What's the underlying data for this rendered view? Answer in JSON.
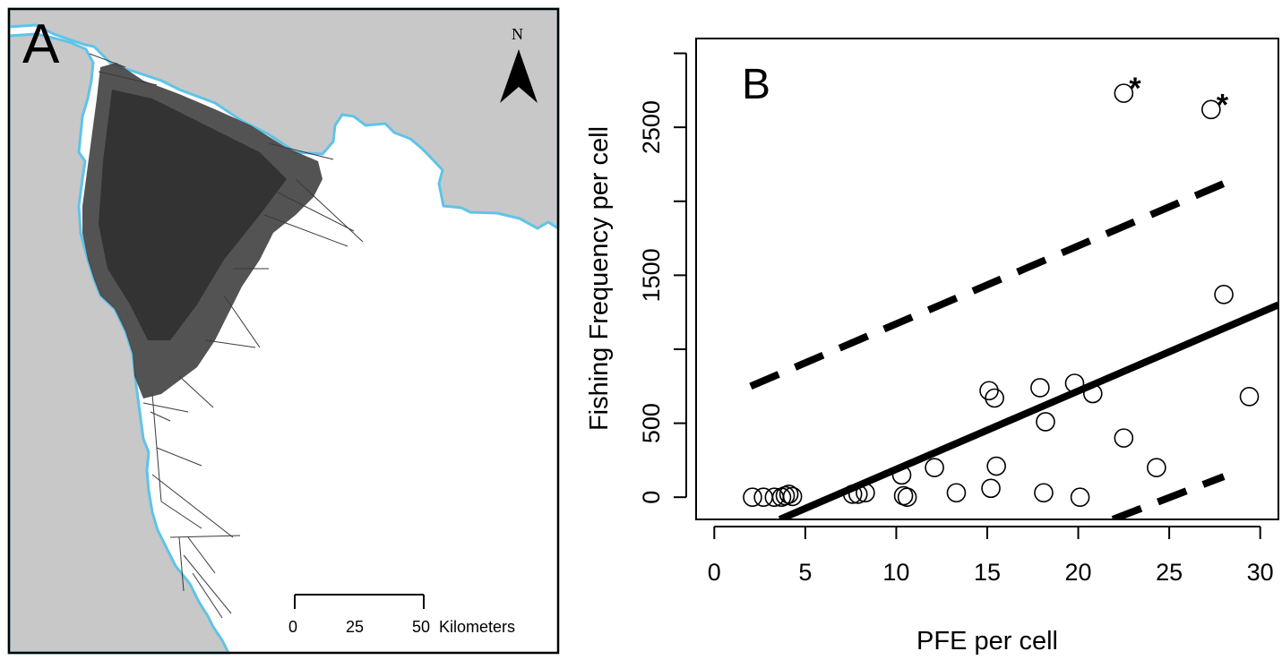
{
  "panel_a": {
    "label": "A",
    "north_label": "N",
    "scale_ticks": [
      "0",
      "25",
      "50"
    ],
    "scale_unit": "Kilometers",
    "colors": {
      "land": "#c8c8c8",
      "sea": "#ffffff",
      "coastline": "#5fc3e8",
      "tracks": "#3a3a3a"
    }
  },
  "chart_data": {
    "type": "scatter",
    "panel_label": "B",
    "title": "",
    "xlabel": "PFE per cell",
    "ylabel": "Fishing Frequency per cell",
    "xlim": [
      -1,
      31
    ],
    "ylim": [
      -150,
      3100
    ],
    "x_ticks": [
      0,
      5,
      10,
      15,
      20,
      25,
      30
    ],
    "y_ticks": [
      0,
      500,
      1500,
      2500
    ],
    "y_minor_ticks": [
      1000,
      2000,
      3000
    ],
    "outlier_marker": "*",
    "points": [
      {
        "x": 2.1,
        "y": 0
      },
      {
        "x": 2.7,
        "y": 0
      },
      {
        "x": 3.3,
        "y": 0
      },
      {
        "x": 3.7,
        "y": 0
      },
      {
        "x": 3.9,
        "y": 10
      },
      {
        "x": 4.1,
        "y": 20
      },
      {
        "x": 4.3,
        "y": 5
      },
      {
        "x": 7.6,
        "y": 20
      },
      {
        "x": 7.9,
        "y": 20
      },
      {
        "x": 8.3,
        "y": 30
      },
      {
        "x": 10.3,
        "y": 150
      },
      {
        "x": 10.4,
        "y": 10
      },
      {
        "x": 10.6,
        "y": 0
      },
      {
        "x": 12.1,
        "y": 200
      },
      {
        "x": 13.3,
        "y": 30
      },
      {
        "x": 15.1,
        "y": 720
      },
      {
        "x": 15.2,
        "y": 60
      },
      {
        "x": 15.4,
        "y": 670
      },
      {
        "x": 15.5,
        "y": 210
      },
      {
        "x": 17.9,
        "y": 740
      },
      {
        "x": 18.1,
        "y": 30
      },
      {
        "x": 18.2,
        "y": 510
      },
      {
        "x": 19.8,
        "y": 770
      },
      {
        "x": 20.1,
        "y": 0
      },
      {
        "x": 20.8,
        "y": 700
      },
      {
        "x": 22.5,
        "y": 400
      },
      {
        "x": 22.5,
        "y": 2730,
        "outlier": true
      },
      {
        "x": 24.3,
        "y": 200
      },
      {
        "x": 27.3,
        "y": 2620,
        "outlier": true
      },
      {
        "x": 28,
        "y": 1370
      },
      {
        "x": 29.4,
        "y": 680
      }
    ],
    "fit_line": {
      "x": [
        3.6,
        31
      ],
      "y": [
        -150,
        1300
      ]
    },
    "prediction_upper": {
      "x": [
        2,
        28
      ],
      "y": [
        750,
        2120
      ]
    },
    "prediction_lower": {
      "x": [
        21.9,
        28
      ],
      "y": [
        -150,
        140
      ]
    }
  }
}
